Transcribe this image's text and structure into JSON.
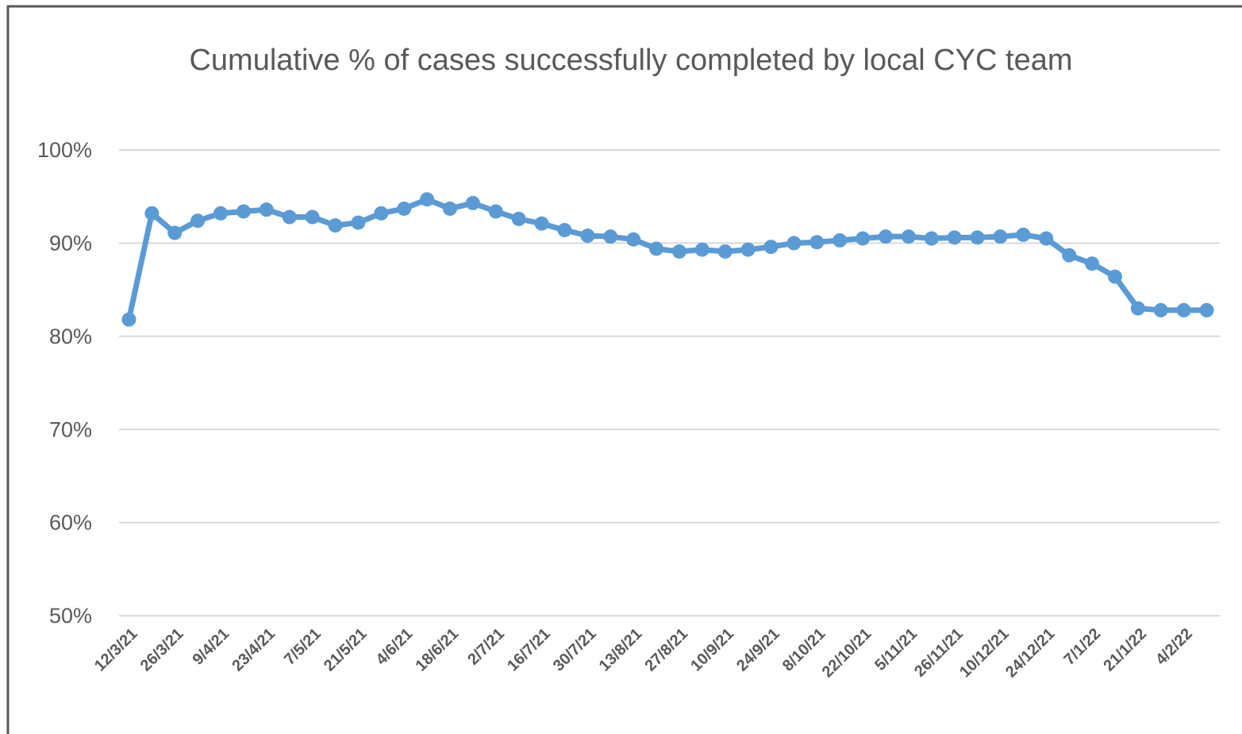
{
  "chart_data": {
    "type": "line",
    "title": "Cumulative % of cases successfully completed by local CYC team",
    "categories": [
      "12/3/21",
      null,
      "26/3/21",
      null,
      "9/4/21",
      null,
      "23/4/21",
      null,
      "7/5/21",
      null,
      "21/5/21",
      null,
      "4/6/21",
      null,
      "18/6/21",
      null,
      "2/7/21",
      null,
      "16/7/21",
      null,
      "30/7/21",
      null,
      "13/8/21",
      null,
      "27/8/21",
      null,
      "10/9/21",
      null,
      "24/9/21",
      null,
      "8/10/21",
      null,
      "22/10/21",
      null,
      "5/11/21",
      null,
      "26/11/21",
      null,
      "10/12/21",
      null,
      "24/12/21",
      null,
      "7/1/22",
      null,
      "21/1/22",
      null,
      "4/2/22",
      null
    ],
    "values": [
      81.8,
      93.2,
      91.1,
      92.4,
      93.2,
      93.4,
      93.6,
      92.8,
      92.8,
      91.9,
      92.2,
      93.2,
      93.7,
      94.7,
      93.7,
      94.3,
      93.4,
      92.6,
      92.1,
      91.4,
      90.8,
      90.7,
      90.4,
      89.4,
      89.1,
      89.3,
      89.1,
      89.3,
      89.6,
      90.0,
      90.1,
      90.3,
      90.5,
      90.7,
      90.7,
      90.5,
      90.6,
      90.6,
      90.7,
      90.9,
      90.5,
      88.7,
      87.8,
      86.4,
      83.0,
      82.8,
      82.8,
      82.8
    ],
    "color": "#5b9bd5",
    "ylim": [
      50,
      100
    ],
    "yticks": [
      {
        "value": 50,
        "label": "50%"
      },
      {
        "value": 60,
        "label": "60%"
      },
      {
        "value": 70,
        "label": "70%"
      },
      {
        "value": 80,
        "label": "80%"
      },
      {
        "value": 90,
        "label": "90%"
      },
      {
        "value": 100,
        "label": "100%"
      }
    ],
    "grid": true
  }
}
